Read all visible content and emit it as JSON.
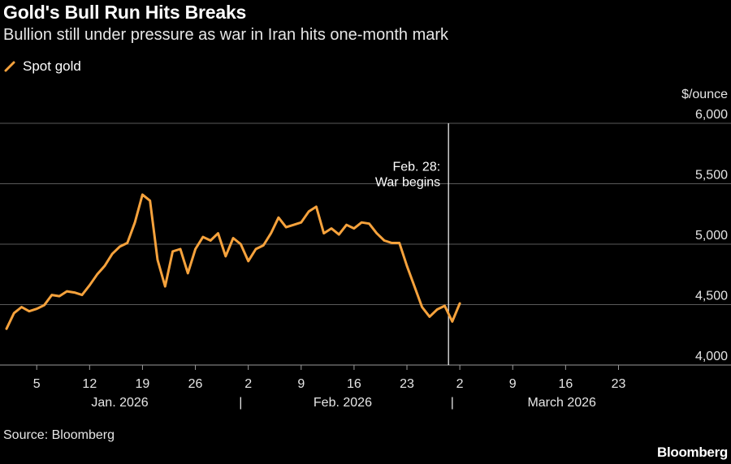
{
  "chart_data": {
    "type": "line",
    "title": "Gold's Bull Run Hits Breaks",
    "subtitle": "Bullion still under pressure as war in Iran hits one-month mark",
    "legend": [
      {
        "name": "Spot gold",
        "color": "#f6a23c"
      }
    ],
    "ylabel": "$/ounce",
    "ylim": [
      4000,
      6000
    ],
    "yticks": [
      {
        "value": 6000,
        "label": "6,000"
      },
      {
        "value": 5500,
        "label": "5,500"
      },
      {
        "value": 5000,
        "label": "5,000"
      },
      {
        "value": 4500,
        "label": "4,500"
      },
      {
        "value": 4000,
        "label": "4,000"
      }
    ],
    "xdomain": [
      1,
      91
    ],
    "xticks": [
      {
        "day": 5,
        "label": "5"
      },
      {
        "day": 12,
        "label": "12"
      },
      {
        "day": 19,
        "label": "19"
      },
      {
        "day": 26,
        "label": "26"
      },
      {
        "day": 33,
        "label": "2"
      },
      {
        "day": 40,
        "label": "9"
      },
      {
        "day": 47,
        "label": "16"
      },
      {
        "day": 54,
        "label": "23"
      },
      {
        "day": 61,
        "label": "2"
      },
      {
        "day": 68,
        "label": "9"
      },
      {
        "day": 75,
        "label": "16"
      },
      {
        "day": 82,
        "label": "23"
      }
    ],
    "months": [
      {
        "label": "Jan. 2026",
        "center_day": 16
      },
      {
        "label": "Feb. 2026",
        "center_day": 45.5
      },
      {
        "label": "March 2026",
        "center_day": 74.5
      }
    ],
    "month_separators": [
      {
        "day": 32,
        "label": "|"
      },
      {
        "day": 60,
        "label": "|"
      }
    ],
    "annotation": {
      "day": 59.5,
      "line1": "Feb. 28:",
      "line2": "War begins"
    },
    "series": [
      {
        "name": "Spot gold",
        "color": "#f6a23c",
        "points": [
          [
            1,
            4300
          ],
          [
            2,
            4430
          ],
          [
            3,
            4480
          ],
          [
            4,
            4445
          ],
          [
            5,
            4465
          ],
          [
            6,
            4495
          ],
          [
            7,
            4580
          ],
          [
            8,
            4570
          ],
          [
            9,
            4610
          ],
          [
            10,
            4600
          ],
          [
            11,
            4580
          ],
          [
            12,
            4660
          ],
          [
            13,
            4750
          ],
          [
            14,
            4820
          ],
          [
            15,
            4920
          ],
          [
            16,
            4980
          ],
          [
            17,
            5010
          ],
          [
            18,
            5180
          ],
          [
            19,
            5410
          ],
          [
            20,
            5360
          ],
          [
            21,
            4870
          ],
          [
            22,
            4650
          ],
          [
            23,
            4940
          ],
          [
            24,
            4960
          ],
          [
            25,
            4760
          ],
          [
            26,
            4960
          ],
          [
            27,
            5060
          ],
          [
            28,
            5030
          ],
          [
            29,
            5090
          ],
          [
            30,
            4900
          ],
          [
            31,
            5050
          ],
          [
            32,
            5000
          ],
          [
            33,
            4860
          ],
          [
            34,
            4960
          ],
          [
            35,
            4990
          ],
          [
            36,
            5090
          ],
          [
            37,
            5220
          ],
          [
            38,
            5140
          ],
          [
            39,
            5160
          ],
          [
            40,
            5180
          ],
          [
            41,
            5270
          ],
          [
            42,
            5310
          ],
          [
            43,
            5090
          ],
          [
            44,
            5130
          ],
          [
            45,
            5080
          ],
          [
            46,
            5160
          ],
          [
            47,
            5130
          ],
          [
            48,
            5180
          ],
          [
            49,
            5170
          ],
          [
            50,
            5090
          ],
          [
            51,
            5030
          ],
          [
            52,
            5010
          ],
          [
            53,
            5010
          ],
          [
            54,
            4820
          ],
          [
            55,
            4650
          ],
          [
            56,
            4480
          ],
          [
            57,
            4400
          ],
          [
            58,
            4460
          ],
          [
            59,
            4490
          ],
          [
            60,
            4360
          ],
          [
            61,
            4510
          ]
        ]
      }
    ]
  },
  "source": "Source: Bloomberg",
  "brand": "Bloomberg"
}
